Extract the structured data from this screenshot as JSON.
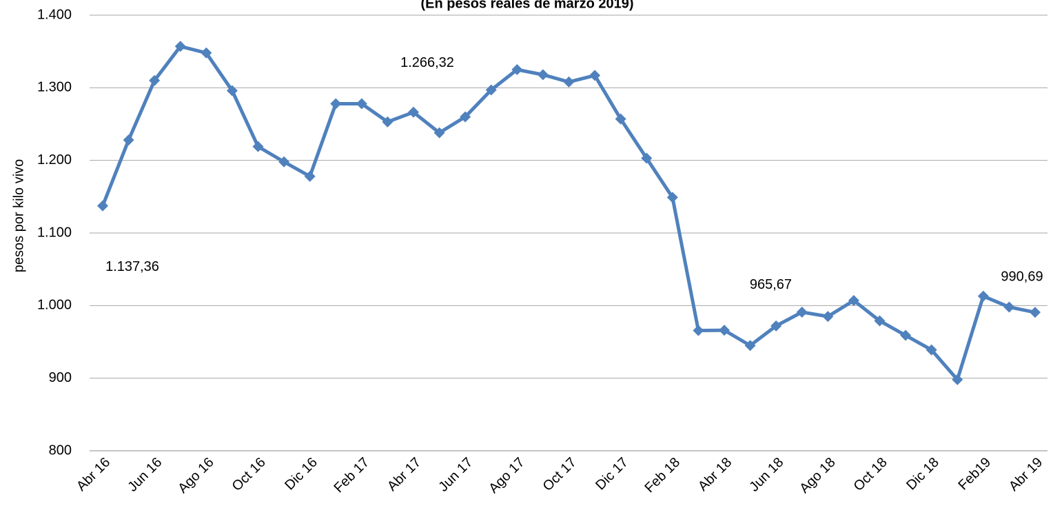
{
  "chart_data": {
    "type": "line",
    "title": "(En pesos reales de marzo 2019)",
    "y_label": "pesos por kilo vivo",
    "categories": [
      "Abr 16",
      null,
      "Jun 16",
      null,
      "Ago 16",
      null,
      "Oct 16",
      null,
      "Dic 16",
      null,
      "Feb 17",
      null,
      "Abr 17",
      null,
      "Jun 17",
      null,
      "Ago 17",
      null,
      "Oct 17",
      null,
      "Dic 17",
      null,
      "Feb 18",
      null,
      "Abr 18",
      null,
      "Jun 18",
      null,
      "Ago 18",
      null,
      "Oct 18",
      null,
      "Dic 18",
      null,
      "Feb19",
      null,
      "Abr 19"
    ],
    "series": [
      {
        "name": "pesos por kilo vivo",
        "color": "#4f81bd",
        "values": [
          1137.36,
          1228,
          1310,
          1357,
          1348,
          1296,
          1219,
          1198,
          1178,
          1278,
          1278,
          1253,
          1266.32,
          1238,
          1260,
          1297,
          1325,
          1318,
          1308,
          1317,
          1257,
          1203,
          1149,
          965.67,
          966,
          945,
          972,
          991,
          985,
          1007,
          979,
          959,
          939,
          898,
          1013,
          998,
          990.69
        ],
        "value_labels": [
          "1.137,36",
          null,
          null,
          null,
          null,
          null,
          null,
          null,
          null,
          null,
          null,
          null,
          "1.266,32",
          null,
          null,
          null,
          null,
          null,
          null,
          null,
          null,
          null,
          null,
          "965,67",
          null,
          null,
          null,
          null,
          null,
          null,
          null,
          null,
          null,
          null,
          null,
          null,
          "990,69"
        ]
      }
    ],
    "ylim": [
      800,
      1400
    ],
    "yticks": [
      800,
      900,
      {
        "value": 1000,
        "label": "1.000"
      },
      {
        "value": 1100,
        "label": "1.100"
      },
      {
        "value": 1200,
        "label": "1.200"
      },
      {
        "value": 1300,
        "label": "1.300"
      },
      {
        "value": 1400,
        "label": "1.400"
      }
    ],
    "grid": true
  }
}
